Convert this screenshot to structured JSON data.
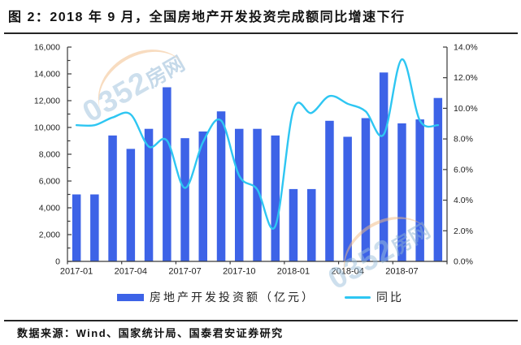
{
  "header": {
    "title": "图 2：2018 年 9 月，全国房地产开发投资完成额同比增速下行"
  },
  "watermark": {
    "number": "0352",
    "suffix": "房网"
  },
  "chart_data": {
    "type": "bar+line",
    "title": "图 2：2018 年 9 月，全国房地产开发投资完成额同比增速下行",
    "categories": [
      "2017-01",
      "2017-02",
      "2017-03",
      "2017-04",
      "2017-05",
      "2017-06",
      "2017-07",
      "2017-08",
      "2017-09",
      "2017-10",
      "2017-11",
      "2017-12",
      "2018-01",
      "2018-02",
      "2018-03",
      "2018-04",
      "2018-05",
      "2018-06",
      "2018-07",
      "2018-08",
      "2018-09"
    ],
    "series": [
      {
        "name": "房地产开发投资额（亿元）",
        "type": "bar",
        "axis": "left",
        "color": "#3d63e7",
        "values": [
          5000,
          5000,
          9400,
          8400,
          9900,
          13000,
          9200,
          9700,
          11200,
          9900,
          9900,
          9400,
          5400,
          5400,
          10500,
          9300,
          10700,
          14100,
          10300,
          10600,
          12200
        ]
      },
      {
        "name": "同比",
        "type": "line",
        "axis": "right",
        "color": "#2ec6f2",
        "values": [
          8.9,
          8.9,
          9.4,
          9.6,
          7.5,
          7.9,
          4.8,
          7.8,
          9.2,
          5.6,
          4.7,
          2.3,
          9.9,
          9.7,
          10.8,
          10.3,
          9.8,
          8.3,
          13.2,
          9.2,
          8.9
        ]
      }
    ],
    "left_axis": {
      "min": 0,
      "max": 16000,
      "tick_step": 2000,
      "minor_step": 1000,
      "labels": [
        "0",
        "2,000",
        "4,000",
        "6,000",
        "8,000",
        "10,000",
        "12,000",
        "14,000",
        "16,000"
      ]
    },
    "right_axis": {
      "min": 0,
      "max": 14,
      "tick_step": 2,
      "labels": [
        "0.0%",
        "2.0%",
        "4.0%",
        "6.0%",
        "8.0%",
        "10.0%",
        "12.0%",
        "14.0%"
      ]
    },
    "x_tick_labels": [
      "2017-01",
      "2017-04",
      "2017-07",
      "2017-10",
      "2018-01",
      "2018-04",
      "2018-07"
    ],
    "grid": false,
    "legend_position": "bottom"
  },
  "footer": {
    "source": "数据来源：Wind、国家统计局、国泰君安证券研究"
  }
}
